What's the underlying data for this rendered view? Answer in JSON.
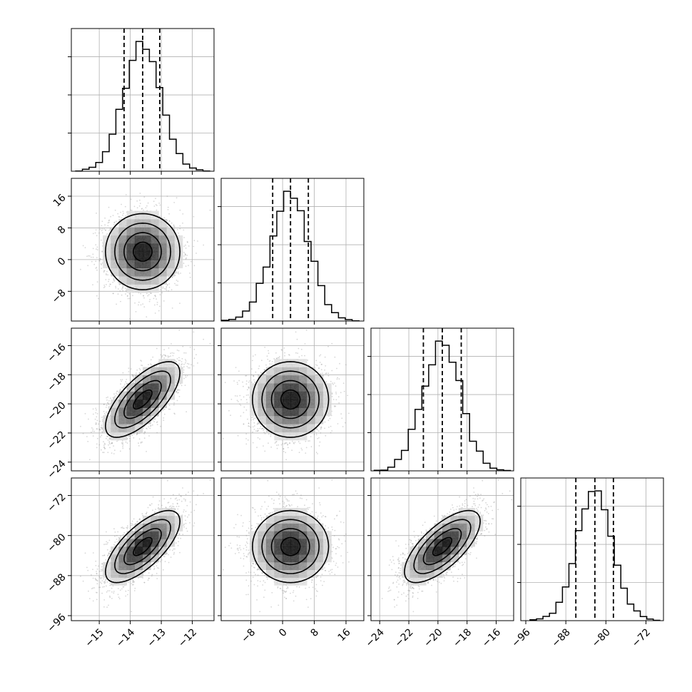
{
  "chart_data": {
    "type": "corner",
    "parameters": [
      {
        "mean": -13.6,
        "sd": 0.6,
        "lim": [
          -15.9,
          -11.3
        ],
        "ticks": [
          -15,
          -14,
          -13,
          -12
        ],
        "tick_labels": [
          "−15",
          "−14",
          "−13",
          "−12"
        ],
        "quantiles": [
          -14.2,
          -13.6,
          -13.05
        ]
      },
      {
        "mean": 2.0,
        "sd": 4.8,
        "lim": [
          -15.5,
          20.5
        ],
        "ticks": [
          -8,
          0,
          8,
          16
        ],
        "tick_labels": [
          "−8",
          "0",
          "8",
          "16"
        ],
        "quantiles": [
          -2.5,
          2.0,
          6.5
        ]
      },
      {
        "mean": -19.7,
        "sd": 1.3,
        "lim": [
          -24.6,
          -14.8
        ],
        "ticks": [
          -24,
          -22,
          -20,
          -18,
          -16
        ],
        "tick_labels": [
          "−24",
          "−22",
          "−20",
          "−18",
          "−16"
        ],
        "quantiles": [
          -21.0,
          -19.7,
          -18.4
        ]
      },
      {
        "mean": -82.2,
        "sd": 3.6,
        "lim": [
          -97.0,
          -68.5
        ],
        "ticks": [
          -96,
          -88,
          -80,
          -72
        ],
        "tick_labels": [
          "−96",
          "−88",
          "−80",
          "−72"
        ],
        "quantiles": [
          -86.0,
          -82.2,
          -78.5
        ]
      }
    ],
    "correlations": [
      [
        1.0,
        0.0,
        0.7,
        0.7
      ],
      [
        0.0,
        1.0,
        0.0,
        0.0
      ],
      [
        0.7,
        0.0,
        1.0,
        0.7
      ],
      [
        0.7,
        0.0,
        0.7,
        1.0
      ]
    ],
    "histogram_bins": 20,
    "contour_levels_sigma": [
      0.5,
      1.0,
      1.5,
      2.0
    ],
    "samples": 5000,
    "grid": true,
    "colors": {
      "points": "#8c8c8c",
      "density": "#000000",
      "grid": "#b0b0b0"
    }
  }
}
